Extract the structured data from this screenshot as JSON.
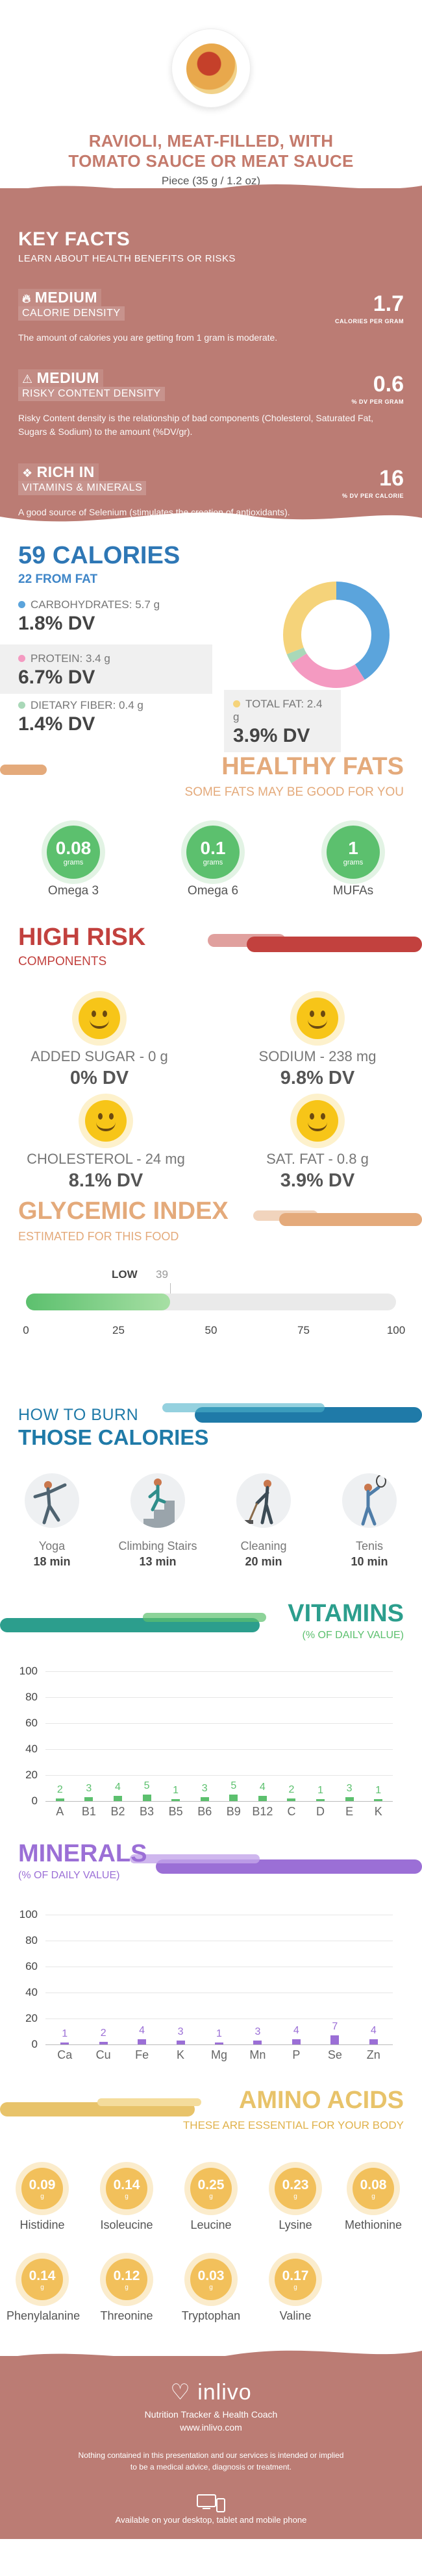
{
  "header": {
    "title_line1": "RAVIOLI, MEAT-FILLED, WITH",
    "title_line2": "TOMATO SAUCE OR MEAT SAUCE",
    "serving": "Piece (35 g / 1.2 oz)"
  },
  "key_facts": {
    "title": "KEY FACTS",
    "subtitle": "LEARN ABOUT HEALTH BENEFITS OR RISKS",
    "items": [
      {
        "level": "MEDIUM",
        "name": "CALORIE DENSITY",
        "value": "1.7",
        "unit": "CALORIES PER GRAM",
        "desc": "The amount of calories you are getting from 1 gram is moderate.",
        "icon": "flame-icon"
      },
      {
        "level": "MEDIUM",
        "name": "RISKY CONTENT DENSITY",
        "value": "0.6",
        "unit": "% DV PER GRAM",
        "desc": "Risky Content density is the relationship of bad components (Cholesterol, Saturated Fat, Sugars & Sodium) to the amount (%DV/gr).",
        "icon": "warning-icon"
      },
      {
        "level": "RICH  IN",
        "name": "VITAMINS & MINERALS",
        "value": "16",
        "unit": "% DV PER CALORIE",
        "desc": "A good source of Selenium (stimulates the creation of antioxidants).",
        "icon": "pill-icon"
      }
    ]
  },
  "calories": {
    "title": "59 CALORIES",
    "subtitle": "22 FROM FAT",
    "carbs_label": "CARBOHYDRATES: 5.7 g",
    "carbs_dv": "1.8% DV",
    "protein_label": "PROTEIN: 3.4 g",
    "protein_dv": "6.7% DV",
    "fiber_label": "DIETARY FIBER: 0.4 g",
    "fiber_dv": "1.4% DV",
    "fat_label": "TOTAL FAT: 2.4 g",
    "fat_dv": "3.9% DV",
    "colors": {
      "carbs": "#5ba4dc",
      "protein": "#f49ac1",
      "fiber": "#a9d8b8",
      "fat": "#f5d37a"
    },
    "donut_shares": {
      "carbs": 0.41,
      "protein": 0.25,
      "fiber": 0.03,
      "fat": 0.31
    }
  },
  "healthy_fats": {
    "title": "HEALTHY FATS",
    "subtitle": "SOME FATS MAY BE GOOD FOR YOU",
    "items": [
      {
        "value": "0.08",
        "unit": "grams",
        "name": "Omega 3"
      },
      {
        "value": "0.1",
        "unit": "grams",
        "name": "Omega 6"
      },
      {
        "value": "1",
        "unit": "grams",
        "name": "MUFAs"
      }
    ]
  },
  "high_risk": {
    "title": "HIGH RISK",
    "subtitle": "COMPONENTS",
    "items": [
      {
        "label": "ADDED SUGAR - 0 g",
        "dv": "0% DV"
      },
      {
        "label": "SODIUM - 238 mg",
        "dv": "9.8% DV"
      },
      {
        "label": "CHOLESTEROL - 24 mg",
        "dv": "8.1% DV"
      },
      {
        "label": "SAT. FAT - 0.8 g",
        "dv": "3.9% DV"
      }
    ]
  },
  "glycemic": {
    "title": "GLYCEMIC INDEX",
    "subtitle": "ESTIMATED FOR THIS FOOD",
    "level": "LOW",
    "value": 39,
    "value_text": "39",
    "ticks": [
      "0",
      "25",
      "50",
      "75",
      "100"
    ]
  },
  "burn": {
    "title1": "HOW TO BURN",
    "title2": "THOSE CALORIES",
    "activities": [
      {
        "name": "Yoga",
        "time": "18 min",
        "icon": "yoga-icon"
      },
      {
        "name": "Climbing Stairs",
        "time": "13 min",
        "icon": "stairs-icon"
      },
      {
        "name": "Cleaning",
        "time": "20 min",
        "icon": "cleaning-icon"
      },
      {
        "name": "Tenis",
        "time": "10 min",
        "icon": "tennis-icon"
      }
    ]
  },
  "vitamins": {
    "title": "VITAMINS",
    "subtitle": "(% OF DAILY VALUE)",
    "color": "#5cc06e",
    "chart_data": {
      "type": "bar",
      "categories": [
        "A",
        "B1",
        "B2",
        "B3",
        "B5",
        "B6",
        "B9",
        "B12",
        "C",
        "D",
        "E",
        "K"
      ],
      "values": [
        2,
        3,
        4,
        5,
        1,
        3,
        5,
        4,
        2,
        1,
        3,
        1
      ],
      "value_labels": [
        "2",
        "3",
        "4",
        "5",
        "1",
        "3",
        "5",
        "4",
        "2",
        "1",
        "3",
        "1"
      ],
      "yticks": [
        "0",
        "20",
        "40",
        "60",
        "80",
        "100"
      ],
      "ylim": [
        0,
        100
      ]
    }
  },
  "minerals": {
    "title": "MINERALS",
    "subtitle": "(% OF DAILY VALUE)",
    "color": "#9b6fd6",
    "chart_data": {
      "type": "bar",
      "categories": [
        "Ca",
        "Cu",
        "Fe",
        "K",
        "Mg",
        "Mn",
        "P",
        "Se",
        "Zn"
      ],
      "values": [
        1,
        2,
        4,
        3,
        1,
        3,
        4,
        7,
        4
      ],
      "value_labels": [
        "1",
        "2",
        "4",
        "3",
        "1",
        "3",
        "4",
        "7",
        "4"
      ],
      "yticks": [
        "0",
        "20",
        "40",
        "60",
        "80",
        "100"
      ],
      "ylim": [
        0,
        100
      ]
    }
  },
  "amino": {
    "title": "AMINO ACIDS",
    "subtitle": "THESE ARE ESSENTIAL FOR YOUR BODY",
    "unit": "g",
    "items": [
      {
        "value": "0.09",
        "name": "Histidine"
      },
      {
        "value": "0.14",
        "name": "Isoleucine"
      },
      {
        "value": "0.25",
        "name": "Leucine"
      },
      {
        "value": "0.23",
        "name": "Lysine"
      },
      {
        "value": "0.08",
        "name": "Methionine"
      },
      {
        "value": "0.14",
        "name": "Phenylalanine"
      },
      {
        "value": "0.12",
        "name": "Threonine"
      },
      {
        "value": "0.03",
        "name": "Tryptophan"
      },
      {
        "value": "0.17",
        "name": "Valine"
      }
    ]
  },
  "footer": {
    "logo": "inlivo",
    "tagline": "Nutrition Tracker & Health Coach",
    "url": "www.inlivo.com",
    "note": "Nothing contained in this presentation and our services is intended or implied to be a medical advice, diagnosis or treatment.",
    "available": "Available on your desktop, tablet and mobile phone"
  }
}
